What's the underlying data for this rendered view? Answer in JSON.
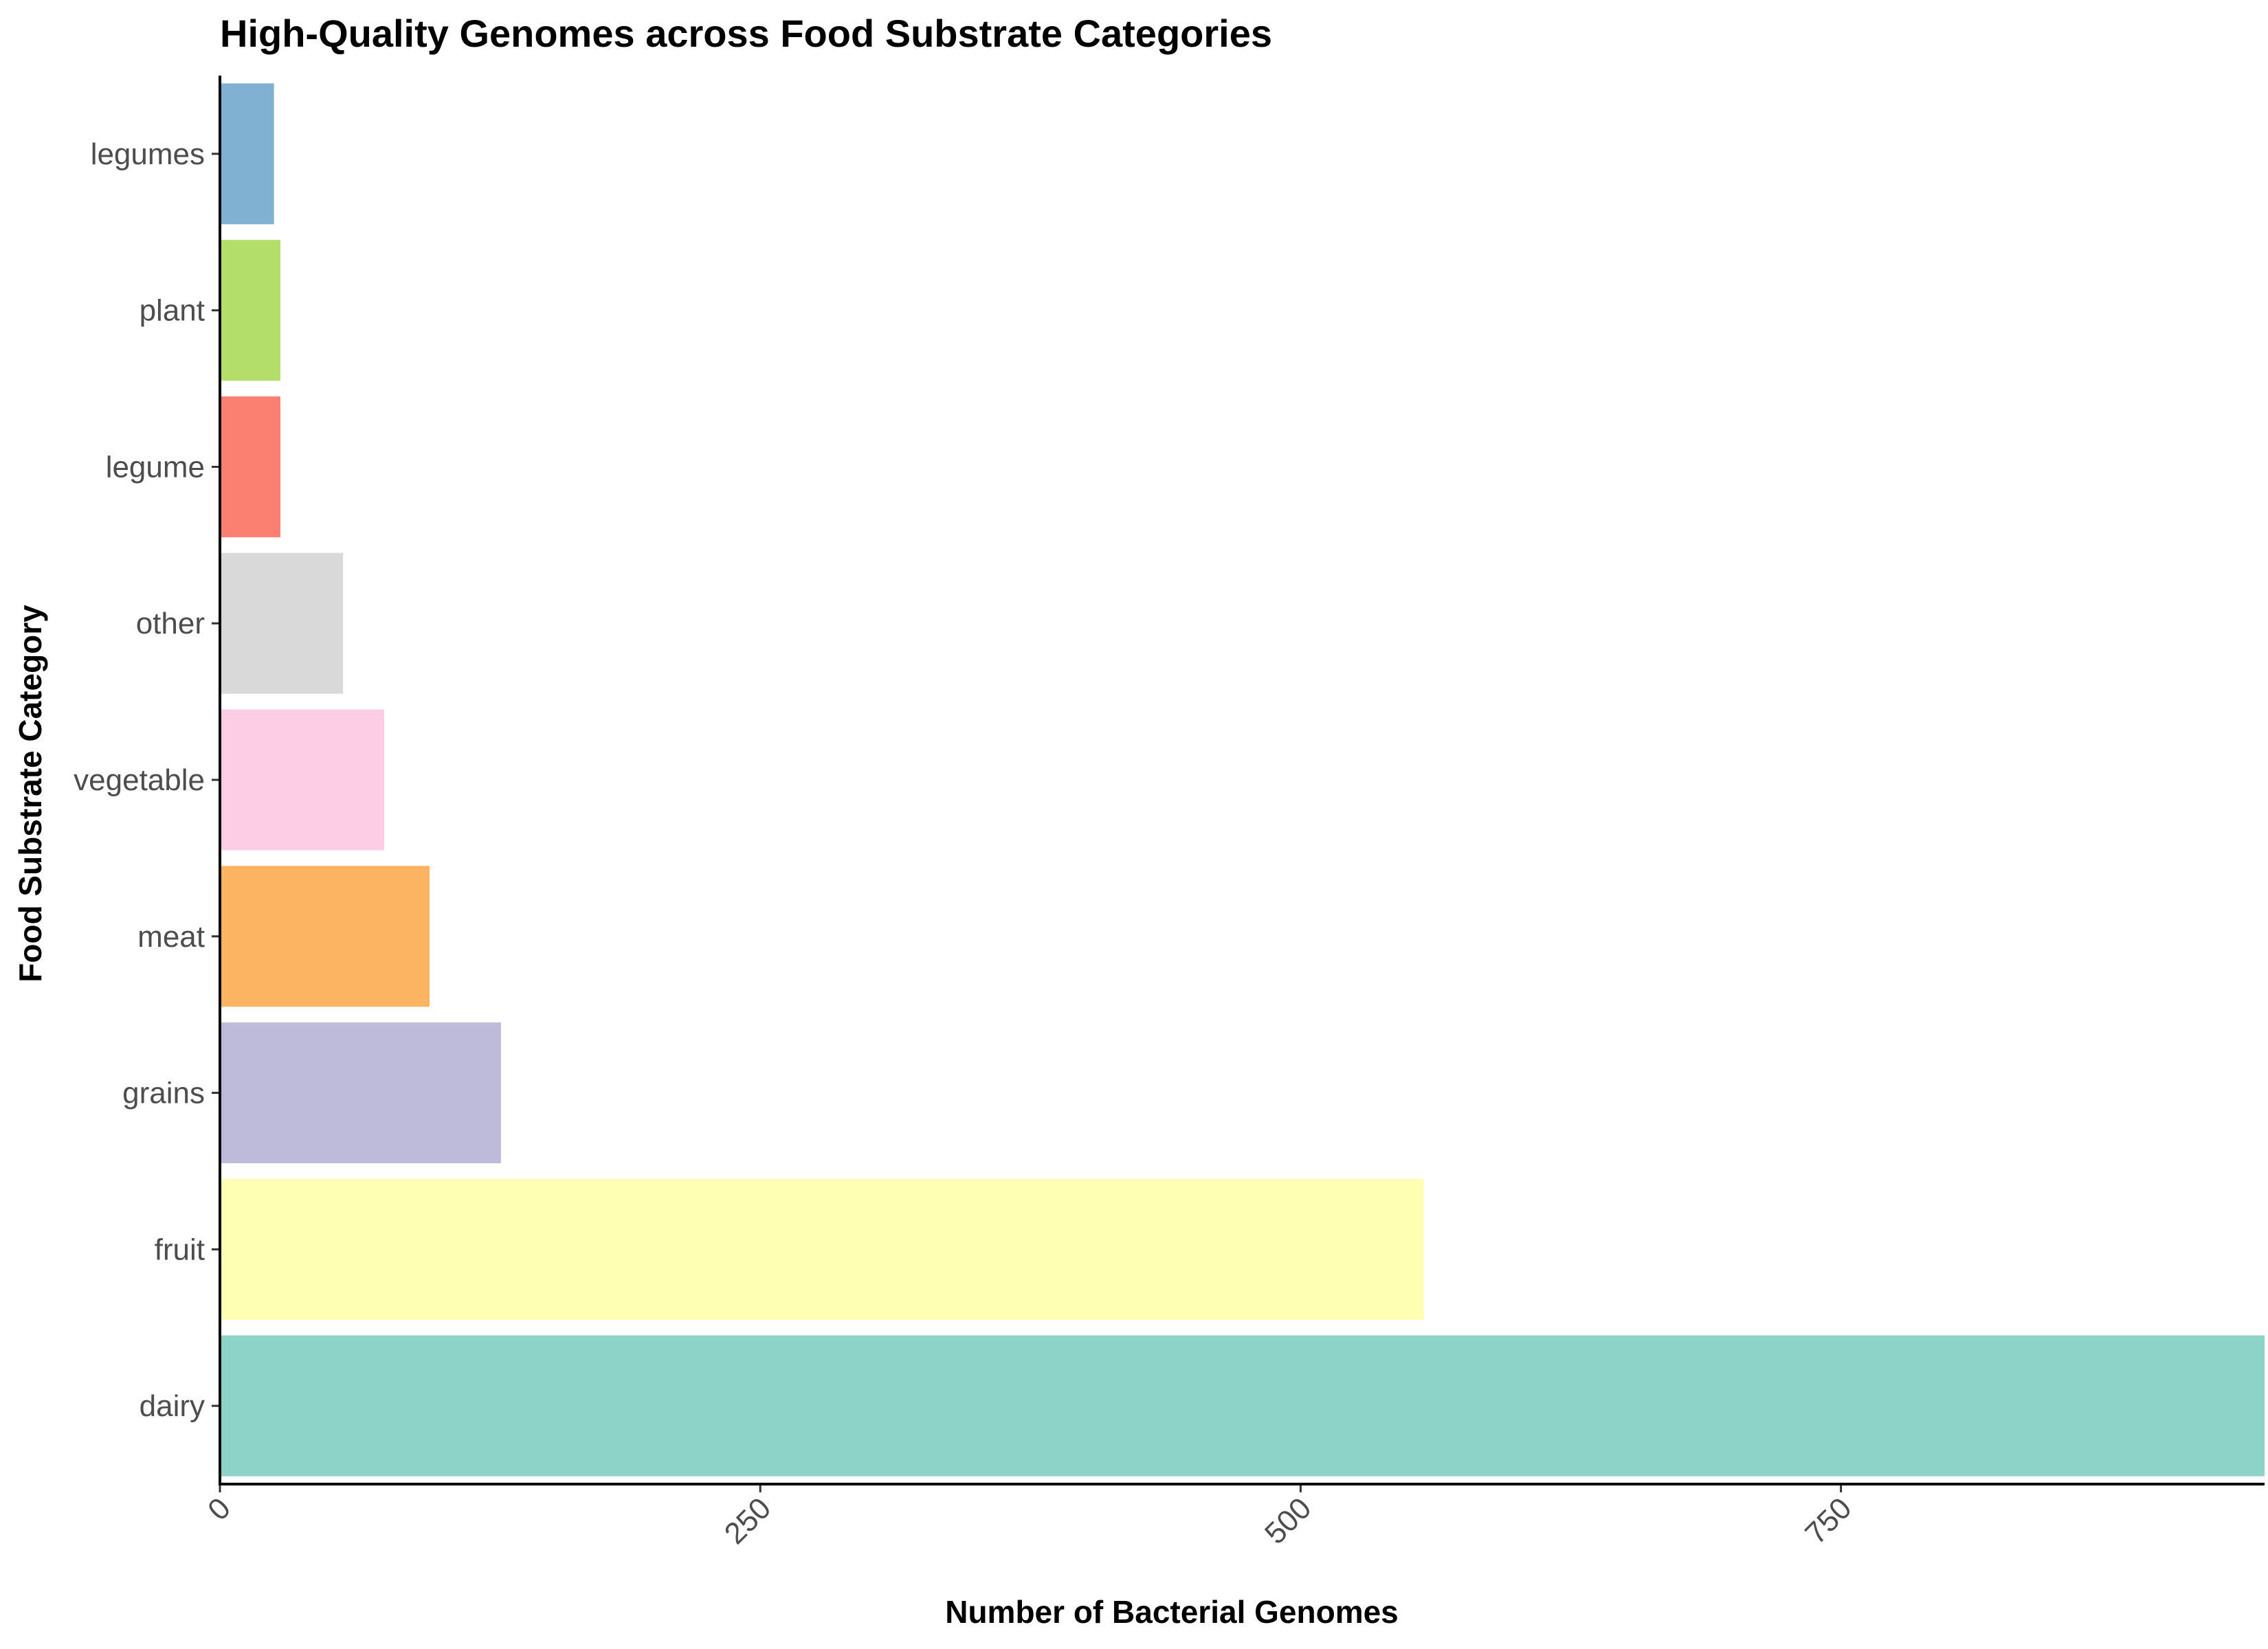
{
  "chart_data": {
    "type": "bar",
    "orientation": "horizontal",
    "title": "High-Quality Genomes across Food Substrate Categories",
    "xlabel": "Number of Bacterial Genomes",
    "ylabel": "Food Substrate Category",
    "categories": [
      "dairy",
      "fruit",
      "grains",
      "meat",
      "vegetable",
      "other",
      "legume",
      "plant",
      "legumes"
    ],
    "values": [
      946,
      557,
      130,
      97,
      76,
      57,
      28,
      28,
      25
    ],
    "colors": [
      "#8DD3C7",
      "#FFFFB3",
      "#BEBADA",
      "#FDB462",
      "#FCCDE5",
      "#D9D9D9",
      "#FB8072",
      "#B3DE69",
      "#80B1D3"
    ],
    "xlim": [
      0,
      946
    ],
    "xticks": [
      0,
      250,
      500,
      750
    ],
    "xtick_labels": [
      "0",
      "250",
      "500",
      "750"
    ],
    "grid": false,
    "legend": "none"
  }
}
